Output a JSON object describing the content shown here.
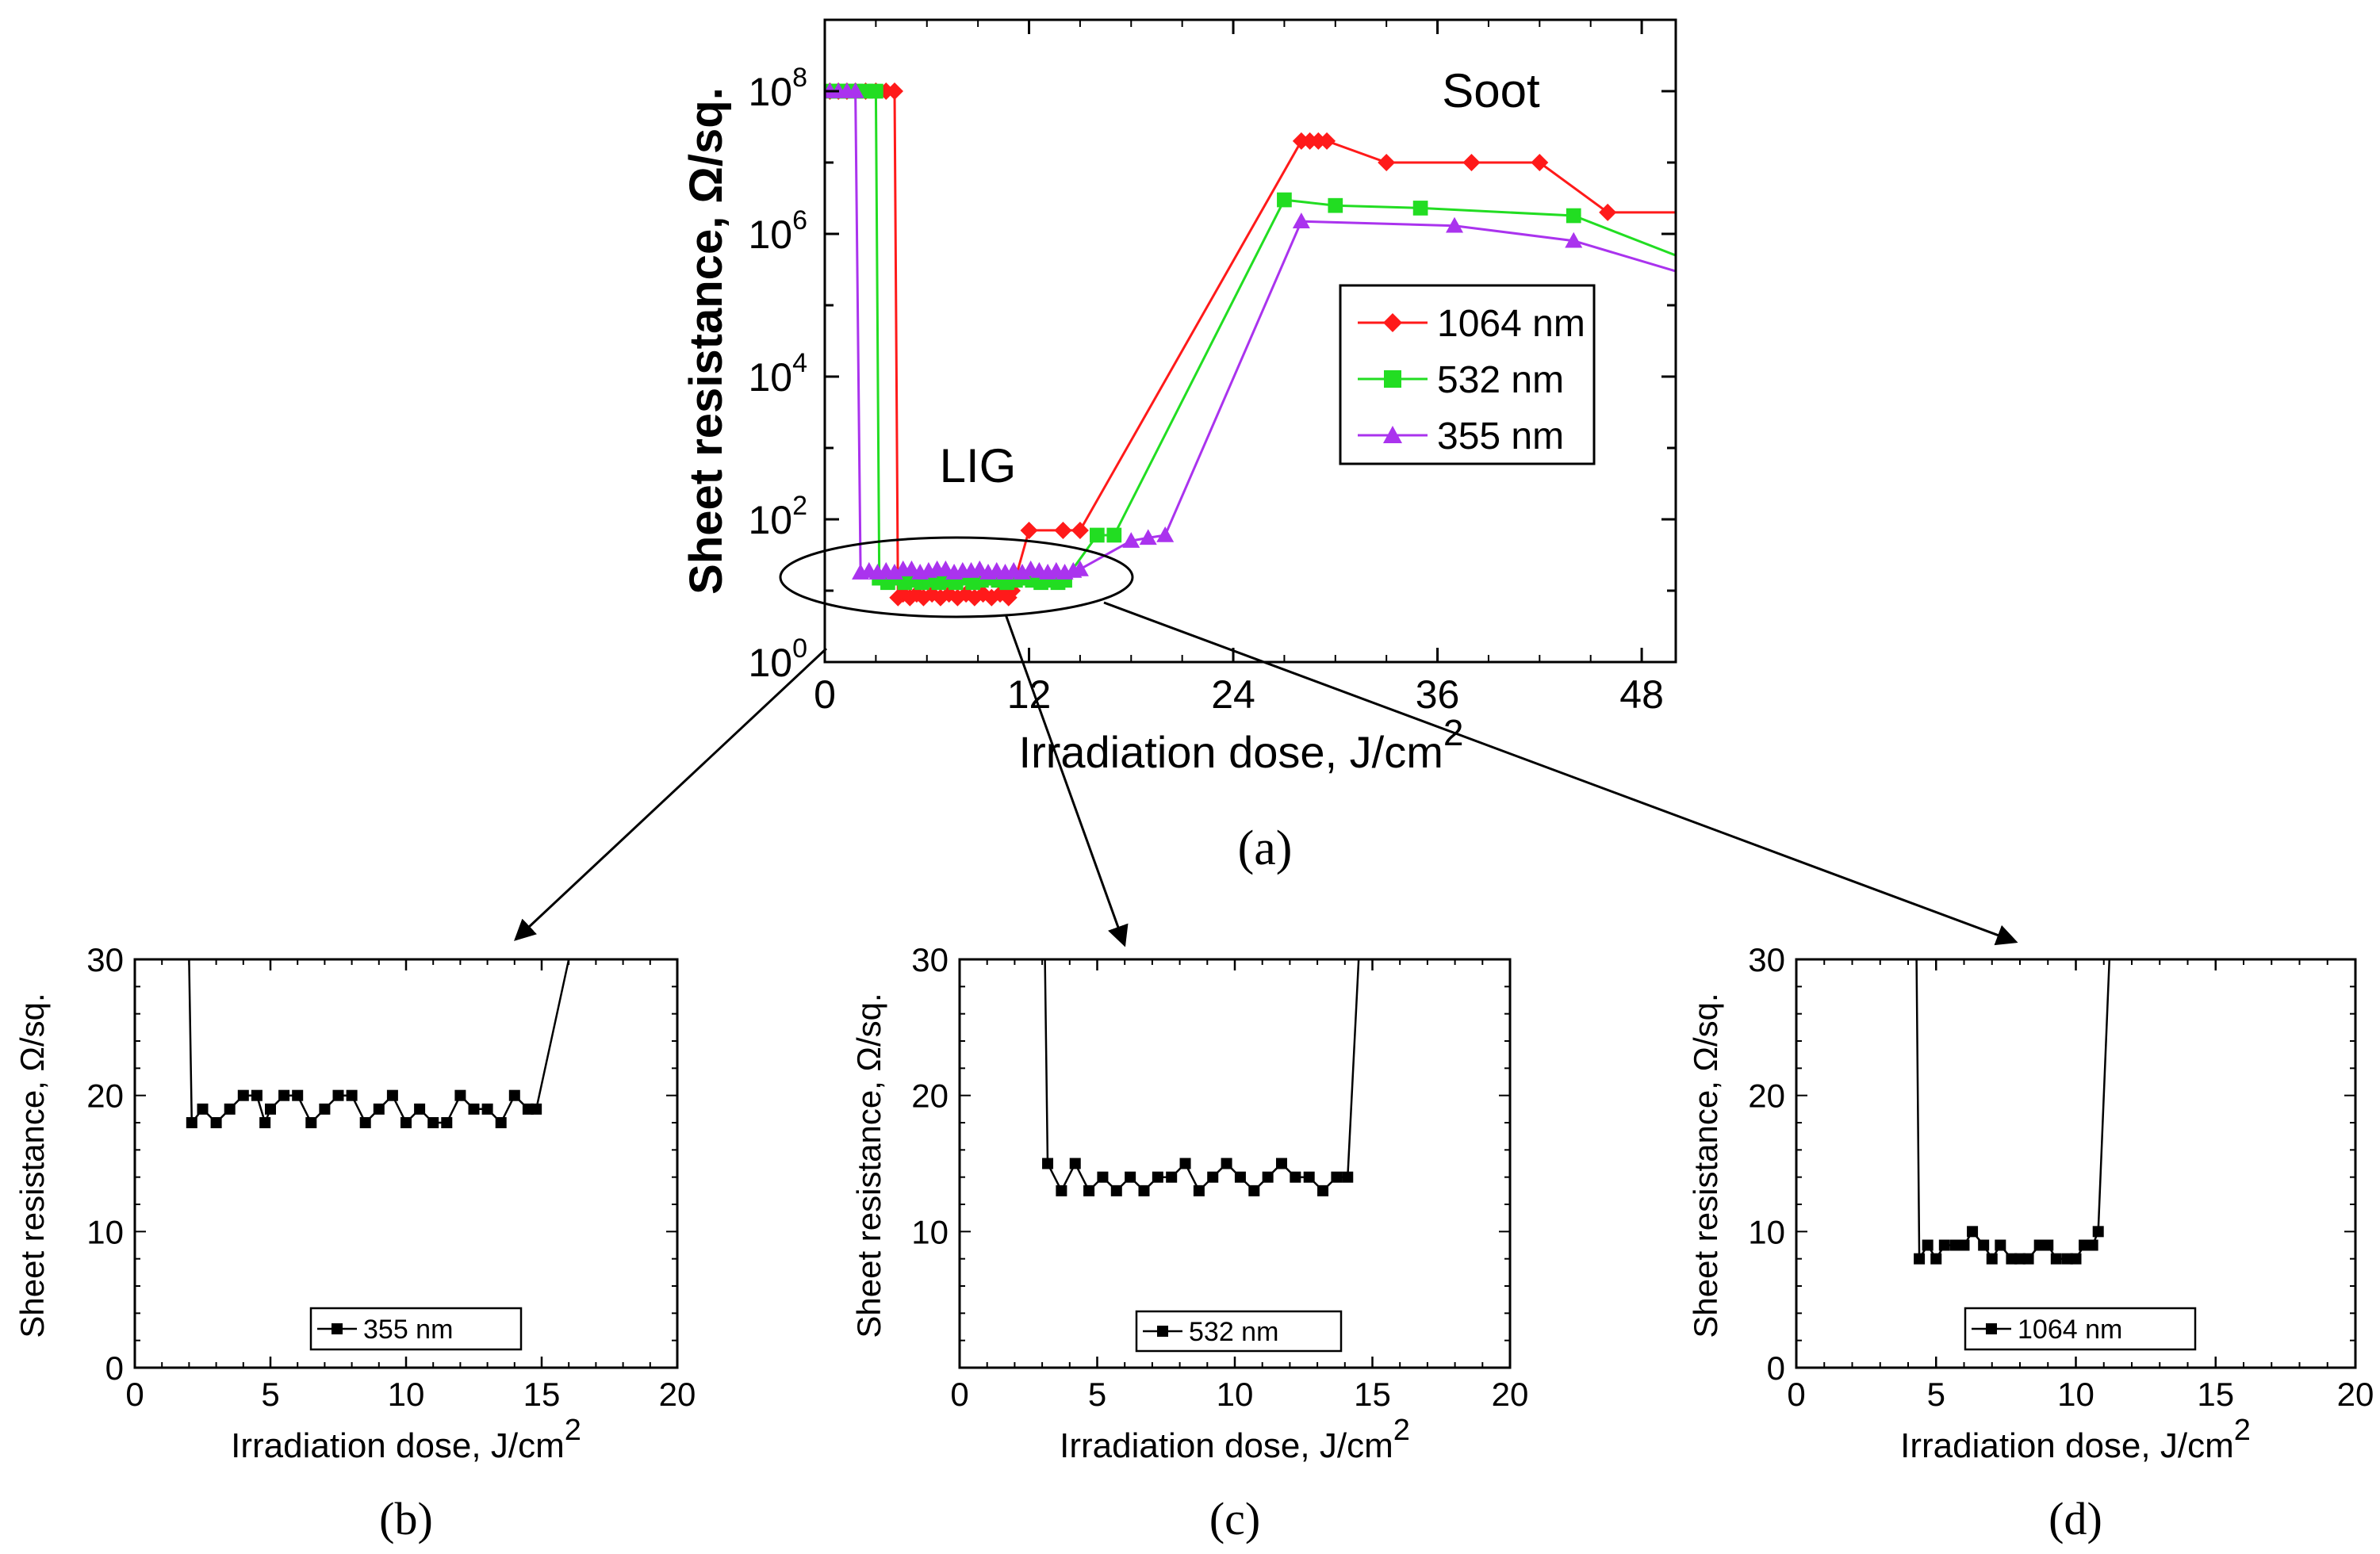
{
  "chart_data": [
    {
      "id": "a",
      "type": "line",
      "caption": "(a)",
      "xlabel": "Irradiation dose, J/cm",
      "xlabel_sup": "2",
      "ylabel": "Sheet resistance, Ω/sq.",
      "xlim": [
        0,
        50
      ],
      "xticks": [
        0,
        12,
        24,
        36,
        48
      ],
      "xtick_labels": [
        "0",
        "12",
        "24",
        "36",
        "48"
      ],
      "yscale": "log",
      "ylim_exp": [
        0,
        9
      ],
      "yticks_exp": [
        0,
        2,
        4,
        6,
        8
      ],
      "ytick_base": "10",
      "annotations": [
        {
          "text": "Soot",
          "x": 39,
          "y_exp": 7.9
        },
        {
          "text": "LIG",
          "x": 9,
          "y_exp": 2.7
        }
      ],
      "legend": {
        "entries": [
          "1064 nm",
          "532 nm",
          "355 nm"
        ],
        "position": "right"
      },
      "colors": {
        "1064 nm": "#ff1a1a",
        "532 nm": "#22dd22",
        "355 nm": "#aa33ee"
      },
      "series": [
        {
          "name": "1064 nm",
          "marker": "diamond",
          "x": [
            0.3,
            0.8,
            1.3,
            1.8,
            2.4,
            3,
            3.6,
            4.1,
            4.3,
            4.6,
            5,
            5.4,
            5.8,
            6.3,
            6.8,
            7.3,
            7.8,
            8.3,
            8.8,
            9.3,
            9.8,
            10.3,
            10.8,
            11,
            12,
            14,
            15,
            28,
            28.5,
            29,
            29.5,
            33,
            38,
            42,
            46,
            50
          ],
          "y": [
            100000000.0,
            100000000.0,
            100000000.0,
            100000000.0,
            100000000.0,
            100000000.0,
            100000000.0,
            100000000.0,
            8,
            9,
            8,
            9,
            8,
            9,
            8,
            9,
            8,
            9,
            8,
            9,
            8,
            9,
            8,
            10,
            70,
            70,
            70,
            20000000.0,
            20000000.0,
            20000000.0,
            20000000.0,
            10000000.0,
            10000000.0,
            10000000.0,
            2000000.0,
            2000000.0
          ]
        },
        {
          "name": "532 nm",
          "marker": "square",
          "x": [
            0.3,
            0.8,
            1.3,
            1.8,
            2.4,
            3,
            3.2,
            3.7,
            4.2,
            4.7,
            5.2,
            5.7,
            6.2,
            6.7,
            7.2,
            7.7,
            8.2,
            8.7,
            9.2,
            9.7,
            10.2,
            10.7,
            11.2,
            11.7,
            12.2,
            12.7,
            13.2,
            13.7,
            14.1,
            16,
            17,
            27,
            30,
            35,
            44,
            50
          ],
          "y": [
            100000000.0,
            100000000.0,
            100000000.0,
            100000000.0,
            100000000.0,
            100000000.0,
            15,
            13,
            15,
            13,
            14,
            13,
            14,
            13,
            14,
            13,
            15,
            13,
            14,
            15,
            14,
            13,
            14,
            15,
            14,
            13,
            14,
            13,
            14,
            60,
            60,
            3000000.0,
            2500000.0,
            2300000.0,
            1800000.0,
            500000.0
          ]
        },
        {
          "name": "355 nm",
          "marker": "triangle",
          "x": [
            0.3,
            0.8,
            1.3,
            1.8,
            2.1,
            2.6,
            3.1,
            3.6,
            4.1,
            4.6,
            5.1,
            5.6,
            6.1,
            6.6,
            7.1,
            7.6,
            8.1,
            8.6,
            9.1,
            9.6,
            10.1,
            10.6,
            11.1,
            11.6,
            12.1,
            12.6,
            13.1,
            13.6,
            14.1,
            14.6,
            15,
            18,
            19,
            20,
            28,
            37,
            44,
            50
          ],
          "y": [
            100000000.0,
            100000000.0,
            100000000.0,
            100000000.0,
            18,
            19,
            18,
            19,
            18,
            20,
            20,
            18,
            19,
            20,
            20,
            18,
            19,
            19,
            20,
            18,
            19,
            18,
            19,
            18,
            20,
            19,
            18,
            19,
            18,
            19,
            20,
            50,
            55,
            60,
            1500000.0,
            1300000.0,
            800000.0,
            300000.0
          ]
        }
      ]
    },
    {
      "id": "b",
      "type": "line",
      "caption": "(b)",
      "xlabel": "Irradiation dose, J/cm",
      "xlabel_sup": "2",
      "ylabel": "Sheet resistance, Ω/sq.",
      "xlim": [
        0,
        20
      ],
      "xticks": [
        0,
        5,
        10,
        15,
        20
      ],
      "xtick_labels": [
        "0",
        "5",
        "10",
        "15",
        "20"
      ],
      "ylim": [
        0,
        30
      ],
      "yticks": [
        0,
        10,
        20,
        30
      ],
      "ytick_labels": [
        "0",
        "10",
        "20",
        "30"
      ],
      "legend": {
        "entries": [
          "355 nm"
        ],
        "position": "bottom-center"
      },
      "series": [
        {
          "name": "355 nm",
          "x": [
            2.0,
            2.1,
            2.5,
            3.0,
            3.5,
            4.0,
            4.5,
            4.8,
            5.0,
            5.5,
            6.0,
            6.5,
            7.0,
            7.5,
            8.0,
            8.5,
            9.0,
            9.5,
            10.0,
            10.5,
            11.0,
            11.5,
            12.0,
            12.5,
            13.0,
            13.5,
            14.0,
            14.5,
            14.8,
            16.0
          ],
          "y": [
            30,
            18,
            19,
            18,
            19,
            20,
            20,
            18,
            19,
            20,
            20,
            18,
            19,
            20,
            20,
            18,
            19,
            20,
            18,
            19,
            18,
            18,
            20,
            19,
            19,
            18,
            20,
            19,
            19,
            30
          ]
        }
      ]
    },
    {
      "id": "c",
      "type": "line",
      "caption": "(c)",
      "xlabel": "Irradiation dose, J/cm",
      "xlabel_sup": "2",
      "ylabel": "Sheet resistance, Ω/sq.",
      "xlim": [
        0,
        20
      ],
      "xticks": [
        0,
        5,
        10,
        15,
        20
      ],
      "xtick_labels": [
        "0",
        "5",
        "10",
        "15",
        "20"
      ],
      "ylim": [
        0,
        30
      ],
      "yticks": [
        10,
        20,
        30
      ],
      "ytick_labels": [
        "10",
        "20",
        "30"
      ],
      "legend": {
        "entries": [
          "532 nm"
        ],
        "position": "bottom-center"
      },
      "series": [
        {
          "name": "532 nm",
          "x": [
            3.1,
            3.2,
            3.7,
            4.2,
            4.7,
            5.2,
            5.7,
            6.2,
            6.7,
            7.2,
            7.7,
            8.2,
            8.7,
            9.2,
            9.7,
            10.2,
            10.7,
            11.2,
            11.7,
            12.2,
            12.7,
            13.2,
            13.7,
            14.1,
            14.5
          ],
          "y": [
            30,
            15,
            13,
            15,
            13,
            14,
            13,
            14,
            13,
            14,
            14,
            15,
            13,
            14,
            15,
            14,
            13,
            14,
            15,
            14,
            14,
            13,
            14,
            14,
            30
          ]
        }
      ]
    },
    {
      "id": "d",
      "type": "line",
      "caption": "(d)",
      "xlabel": "Irradiation dose, J/cm",
      "xlabel_sup": "2",
      "ylabel": "Sheet resistance, Ω/sq.",
      "xlim": [
        0,
        20
      ],
      "xticks": [
        0,
        5,
        10,
        15,
        20
      ],
      "xtick_labels": [
        "0",
        "5",
        "10",
        "15",
        "20"
      ],
      "ylim": [
        0,
        30
      ],
      "yticks": [
        0,
        10,
        20,
        30
      ],
      "ytick_labels": [
        "0",
        "10",
        "20",
        "30"
      ],
      "legend": {
        "entries": [
          "1064 nm"
        ],
        "position": "bottom-center"
      },
      "series": [
        {
          "name": "1064 nm",
          "x": [
            4.3,
            4.4,
            4.7,
            5.0,
            5.3,
            5.7,
            6.0,
            6.3,
            6.7,
            7.0,
            7.3,
            7.7,
            8.0,
            8.3,
            8.7,
            9.0,
            9.3,
            9.7,
            10.0,
            10.3,
            10.6,
            10.8,
            11.2
          ],
          "y": [
            30,
            8,
            9,
            8,
            9,
            9,
            9,
            10,
            9,
            8,
            9,
            8,
            8,
            8,
            9,
            9,
            8,
            8,
            8,
            9,
            9,
            10,
            30
          ]
        }
      ]
    }
  ]
}
